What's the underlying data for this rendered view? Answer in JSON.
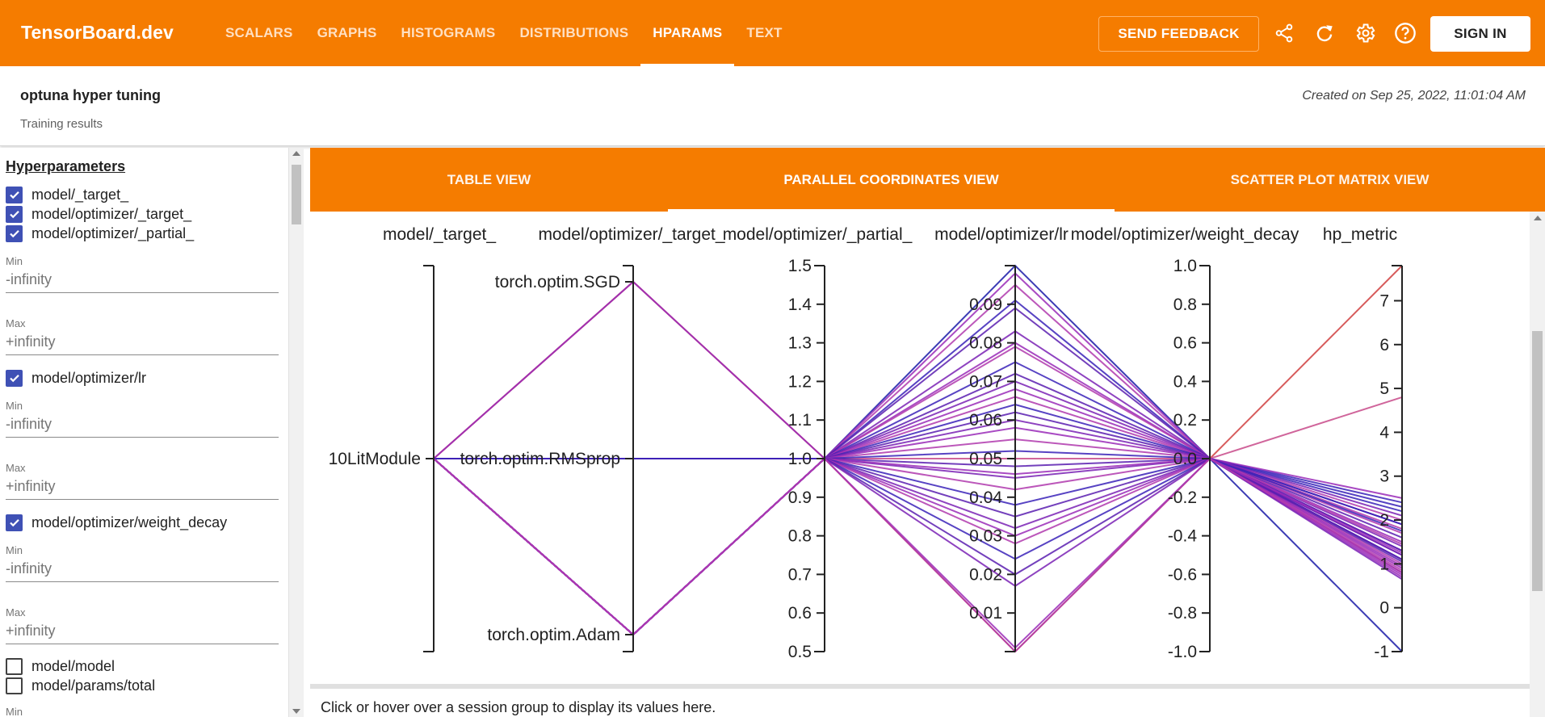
{
  "app": {
    "brand": "TensorBoard.dev",
    "nav_tabs": [
      {
        "label": "SCALARS",
        "active": false
      },
      {
        "label": "GRAPHS",
        "active": false
      },
      {
        "label": "HISTOGRAMS",
        "active": false
      },
      {
        "label": "DISTRIBUTIONS",
        "active": false
      },
      {
        "label": "HPARAMS",
        "active": true
      },
      {
        "label": "TEXT",
        "active": false
      }
    ],
    "send_feedback_label": "SEND FEEDBACK",
    "sign_in_label": "SIGN IN",
    "toolbar_icons": [
      "share-icon",
      "refresh-icon",
      "settings-icon",
      "help-icon"
    ],
    "accent_color": "#f57c00",
    "checkbox_color": "#3f51b5"
  },
  "experiment": {
    "title": "optuna hyper tuning",
    "subtitle": "Training results",
    "created": "Created on Sep 25, 2022, 11:01:04 AM"
  },
  "sidebar": {
    "heading": "Hyperparameters",
    "items": [
      {
        "label": "model/_target_",
        "checked": true
      },
      {
        "label": "model/optimizer/_target_",
        "checked": true
      },
      {
        "label": "model/optimizer/_partial_",
        "checked": true
      },
      {
        "min_label": "Min",
        "min_value": "-infinity",
        "max_label": "Max",
        "max_value": "+infinity"
      },
      {
        "label": "model/optimizer/lr",
        "checked": true
      },
      {
        "min_label": "Min",
        "min_value": "-infinity",
        "max_label": "Max",
        "max_value": "+infinity"
      },
      {
        "label": "model/optimizer/weight_decay",
        "checked": true
      },
      {
        "min_label": "Min",
        "min_value": "-infinity",
        "max_label": "Max",
        "max_value": "+infinity"
      },
      {
        "label": "model/model",
        "checked": false
      },
      {
        "label": "model/params/total",
        "checked": false
      },
      {
        "min_label": "Min"
      }
    ]
  },
  "view_tabs": [
    {
      "label": "TABLE VIEW",
      "active": false
    },
    {
      "label": "PARALLEL COORDINATES VIEW",
      "active": true
    },
    {
      "label": "SCATTER PLOT MATRIX VIEW",
      "active": false
    }
  ],
  "chart_data": {
    "type": "parallel_coordinates",
    "axes": [
      {
        "name": "model/_target_",
        "kind": "categorical",
        "ticks": [
          "10LitModule"
        ]
      },
      {
        "name": "model/optimizer/_target_",
        "kind": "categorical",
        "ticks": [
          "torch.optim.SGD",
          "torch.optim.RMSprop",
          "torch.optim.Adam"
        ]
      },
      {
        "name": "model/optimizer/_partial_",
        "kind": "numeric",
        "range": [
          0.5,
          1.5
        ],
        "ticks": [
          "1.5",
          "1.4",
          "1.3",
          "1.2",
          "1.1",
          "1.0",
          "0.9",
          "0.8",
          "0.7",
          "0.6",
          "0.5"
        ]
      },
      {
        "name": "model/optimizer/lr",
        "kind": "numeric",
        "range": [
          0.0,
          0.1
        ],
        "ticks": [
          "0.09",
          "0.08",
          "0.07",
          "0.06",
          "0.05",
          "0.04",
          "0.03",
          "0.02",
          "0.01"
        ]
      },
      {
        "name": "model/optimizer/weight_decay",
        "kind": "numeric",
        "range": [
          -1.0,
          1.0
        ],
        "ticks": [
          "1.0",
          "0.8",
          "0.6",
          "0.4",
          "0.2",
          "0.0",
          "-0.2",
          "-0.4",
          "-0.6",
          "-0.8",
          "-1.0"
        ]
      },
      {
        "name": "hp_metric",
        "kind": "numeric",
        "range": [
          -1,
          7.8
        ],
        "ticks": [
          "7",
          "6",
          "5",
          "4",
          "3",
          "2",
          "1",
          "0",
          "-1"
        ]
      }
    ],
    "sessions": [
      {
        "optimizer": "torch.optim.SGD",
        "lr": 0.0,
        "metric": 7.8
      },
      {
        "optimizer": "torch.optim.SGD",
        "lr": 0.05,
        "metric": 4.8
      },
      {
        "optimizer": "torch.optim.RMSprop",
        "lr": 0.1,
        "metric": -1.0
      },
      {
        "optimizer": "torch.optim.Adam",
        "lr": 0.098,
        "metric": 0.9
      },
      {
        "optimizer": "torch.optim.Adam",
        "lr": 0.095,
        "metric": 1.0
      },
      {
        "optimizer": "torch.optim.Adam",
        "lr": 0.091,
        "metric": 1.1
      },
      {
        "optimizer": "torch.optim.RMSprop",
        "lr": 0.089,
        "metric": 1.2
      },
      {
        "optimizer": "torch.optim.Adam",
        "lr": 0.083,
        "metric": 1.3
      },
      {
        "optimizer": "torch.optim.Adam",
        "lr": 0.08,
        "metric": 0.7
      },
      {
        "optimizer": "torch.optim.RMSprop",
        "lr": 0.079,
        "metric": 1.8
      },
      {
        "optimizer": "torch.optim.Adam",
        "lr": 0.075,
        "metric": 2.2
      },
      {
        "optimizer": "torch.optim.RMSprop",
        "lr": 0.072,
        "metric": 1.9
      },
      {
        "optimizer": "torch.optim.Adam",
        "lr": 0.07,
        "metric": 0.8
      },
      {
        "optimizer": "torch.optim.Adam",
        "lr": 0.068,
        "metric": 1.5
      },
      {
        "optimizer": "torch.optim.Adam",
        "lr": 0.066,
        "metric": 2.0
      },
      {
        "optimizer": "torch.optim.RMSprop",
        "lr": 0.064,
        "metric": 2.4
      },
      {
        "optimizer": "torch.optim.Adam",
        "lr": 0.062,
        "metric": 1.6
      },
      {
        "optimizer": "torch.optim.Adam",
        "lr": 0.06,
        "metric": 1.4
      },
      {
        "optimizer": "torch.optim.RMSprop",
        "lr": 0.058,
        "metric": 0.75
      },
      {
        "optimizer": "torch.optim.Adam",
        "lr": 0.055,
        "metric": 1.7
      },
      {
        "optimizer": "torch.optim.Adam",
        "lr": 0.052,
        "metric": 2.3
      },
      {
        "optimizer": "torch.optim.RMSprop",
        "lr": 0.048,
        "metric": 1.1
      },
      {
        "optimizer": "torch.optim.Adam",
        "lr": 0.045,
        "metric": 1.2
      },
      {
        "optimizer": "torch.optim.SGD",
        "lr": 0.046,
        "metric": 2.5
      },
      {
        "optimizer": "torch.optim.Adam",
        "lr": 0.042,
        "metric": 0.85
      },
      {
        "optimizer": "torch.optim.Adam",
        "lr": 0.038,
        "metric": 1.9
      },
      {
        "optimizer": "torch.optim.RMSprop",
        "lr": 0.035,
        "metric": 1.3
      },
      {
        "optimizer": "torch.optim.Adam",
        "lr": 0.032,
        "metric": 2.1
      },
      {
        "optimizer": "torch.optim.Adam",
        "lr": 0.03,
        "metric": 0.95
      },
      {
        "optimizer": "torch.optim.Adam",
        "lr": 0.028,
        "metric": 1.45
      },
      {
        "optimizer": "torch.optim.RMSprop",
        "lr": 0.024,
        "metric": 1.75
      },
      {
        "optimizer": "torch.optim.Adam",
        "lr": 0.02,
        "metric": 1.05
      },
      {
        "optimizer": "torch.optim.Adam",
        "lr": 0.017,
        "metric": 0.65
      },
      {
        "optimizer": "torch.optim.Adam",
        "lr": 0.001,
        "metric": 1.25
      },
      {
        "optimizer": "torch.optim.Adam",
        "lr": 0.0,
        "metric": 0.8
      }
    ],
    "partial_value": 1.0,
    "weight_decay_value": 0.0,
    "line_colors": [
      "#1a1aa8",
      "#3a22b8",
      "#5a1fb0",
      "#7a22b5",
      "#9a2cb8",
      "#b03aae",
      "#c84a8a",
      "#d04040"
    ]
  },
  "footer_info": "Click or hover over a session group to display its values here."
}
